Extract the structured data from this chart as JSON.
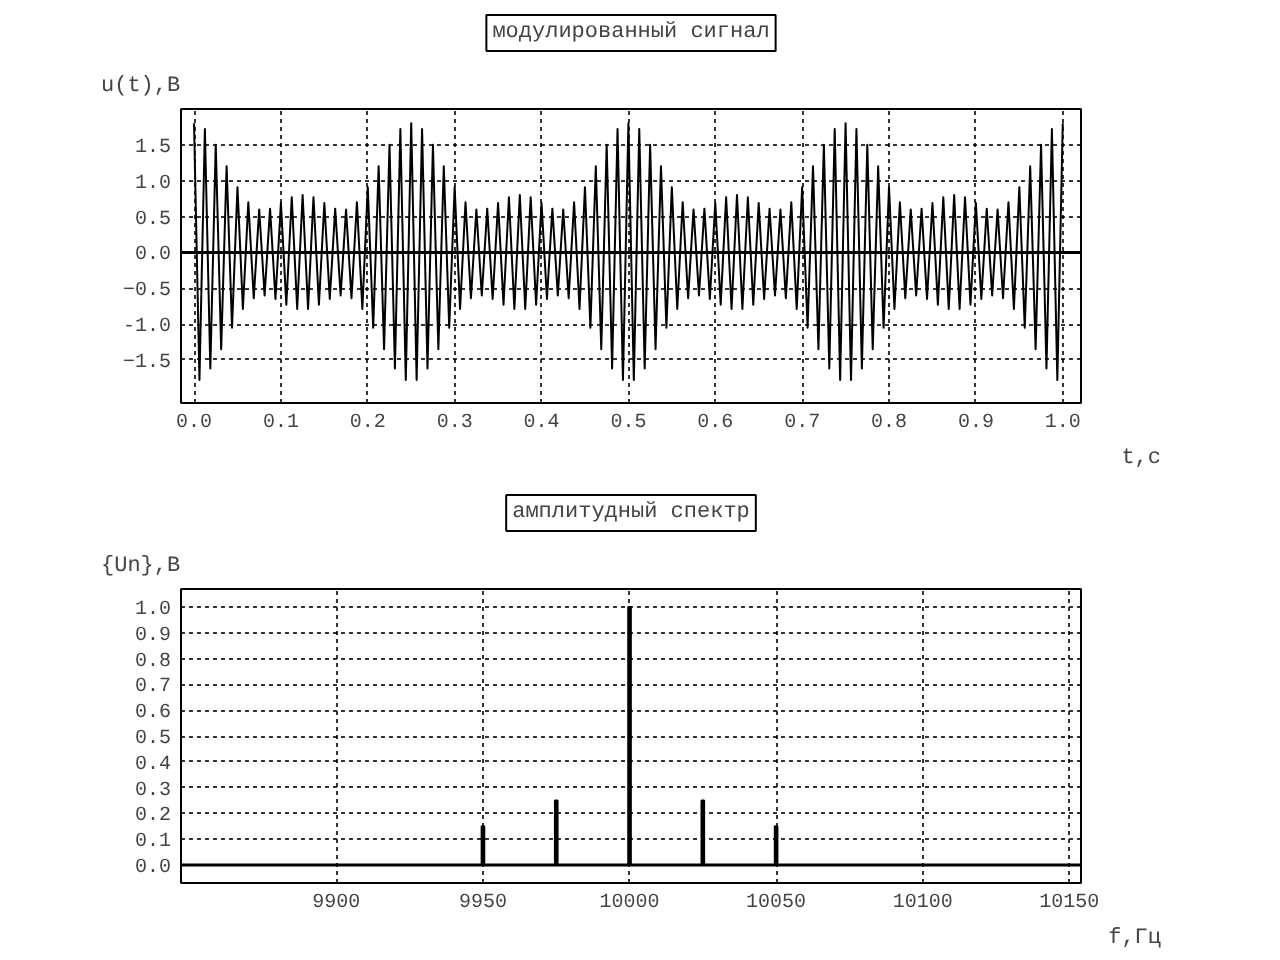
{
  "chart_data": [
    {
      "type": "line",
      "title": "модулированный сигнал",
      "xlabel": "t,с",
      "ylabel": "u(t),В",
      "x": [
        0,
        0.00625,
        0.0125,
        0.01875,
        0.025,
        0.03125,
        0.0375,
        0.04375,
        0.05,
        0.05625,
        0.0625,
        0.06875,
        0.075,
        0.08125,
        0.0875,
        0.09375,
        0.1,
        0.10625,
        0.1125,
        0.11875,
        0.125,
        0.13125,
        0.1375,
        0.14375,
        0.15,
        0.15625,
        0.1625,
        0.16875,
        0.175,
        0.18125,
        0.1875,
        0.19375,
        0.2,
        0.20625,
        0.2125,
        0.21875,
        0.225,
        0.23125,
        0.2375,
        0.24375,
        0.25,
        0.25625,
        0.2625,
        0.26875,
        0.275,
        0.28125,
        0.2875,
        0.29375,
        0.3,
        0.30625,
        0.3125,
        0.31875,
        0.325,
        0.33125,
        0.3375,
        0.34375,
        0.35,
        0.35625,
        0.3625,
        0.36875,
        0.375,
        0.38125,
        0.3875,
        0.39375,
        0.4,
        0.40625,
        0.4125,
        0.41875,
        0.425,
        0.43125,
        0.4375,
        0.44375,
        0.45,
        0.45625,
        0.4625,
        0.46875,
        0.475,
        0.48125,
        0.4875,
        0.49375,
        0.5,
        0.50625,
        0.5125,
        0.51875,
        0.525,
        0.53125,
        0.5375,
        0.54375,
        0.55,
        0.55625,
        0.5625,
        0.56875,
        0.575,
        0.58125,
        0.5875,
        0.59375,
        0.6,
        0.60625,
        0.6125,
        0.61875,
        0.625,
        0.63125,
        0.6375,
        0.64375,
        0.65,
        0.65625,
        0.6625,
        0.66875,
        0.675,
        0.68125,
        0.6875,
        0.69375,
        0.7,
        0.70625,
        0.7125,
        0.71875,
        0.725,
        0.73125,
        0.7375,
        0.74375,
        0.75,
        0.75625,
        0.7625,
        0.76875,
        0.775,
        0.78125,
        0.7875,
        0.79375,
        0.8,
        0.80625,
        0.8125,
        0.81875,
        0.825,
        0.83125,
        0.8375,
        0.84375,
        0.85,
        0.85625,
        0.8625,
        0.86875,
        0.875,
        0.88125,
        0.8875,
        0.89375,
        0.9,
        0.90625,
        0.9125,
        0.91875,
        0.925,
        0.93125,
        0.9375,
        0.94375,
        0.95,
        0.95625,
        0.9625,
        0.96875,
        0.975,
        0.98125,
        0.9875,
        0.99375,
        1.0
      ],
      "series": [
        {
          "color": "#000000",
          "values": [
            1.8,
            -1.78,
            1.72,
            -1.62,
            1.5,
            -1.35,
            1.2,
            -1.05,
            0.91,
            -0.79,
            0.7,
            -0.64,
            0.6,
            -0.6,
            0.61,
            -0.65,
            0.69,
            -0.73,
            0.77,
            -0.79,
            0.8,
            -0.79,
            0.77,
            -0.73,
            0.69,
            -0.65,
            0.61,
            -0.6,
            0.6,
            -0.64,
            0.7,
            -0.79,
            0.91,
            -1.05,
            1.2,
            -1.35,
            1.5,
            -1.62,
            1.72,
            -1.78,
            1.8,
            -1.78,
            1.72,
            -1.62,
            1.5,
            -1.35,
            1.2,
            -1.05,
            0.91,
            -0.79,
            0.7,
            -0.64,
            0.6,
            -0.6,
            0.61,
            -0.65,
            0.69,
            -0.73,
            0.77,
            -0.79,
            0.8,
            -0.79,
            0.77,
            -0.73,
            0.69,
            -0.65,
            0.61,
            -0.6,
            0.6,
            -0.64,
            0.7,
            -0.79,
            0.91,
            -1.05,
            1.2,
            -1.35,
            1.5,
            -1.62,
            1.72,
            -1.78,
            1.8,
            -1.78,
            1.72,
            -1.62,
            1.5,
            -1.35,
            1.2,
            -1.05,
            0.91,
            -0.79,
            0.7,
            -0.64,
            0.6,
            -0.6,
            0.61,
            -0.65,
            0.69,
            -0.73,
            0.77,
            -0.79,
            0.8,
            -0.79,
            0.77,
            -0.73,
            0.69,
            -0.65,
            0.61,
            -0.6,
            0.6,
            -0.64,
            0.7,
            -0.79,
            0.91,
            -1.05,
            1.2,
            -1.35,
            1.5,
            -1.62,
            1.72,
            -1.78,
            1.8,
            -1.78,
            1.72,
            -1.62,
            1.5,
            -1.35,
            1.2,
            -1.05,
            0.91,
            -0.79,
            0.7,
            -0.64,
            0.6,
            -0.6,
            0.61,
            -0.65,
            0.69,
            -0.73,
            0.77,
            -0.79,
            0.8,
            -0.79,
            0.77,
            -0.73,
            0.69,
            -0.65,
            0.61,
            -0.6,
            0.6,
            -0.64,
            0.7,
            -0.79,
            0.91,
            -1.05,
            1.2,
            -1.35,
            1.5,
            -1.62,
            1.72,
            -1.78,
            1.8
          ]
        }
      ],
      "xlim": [
        -0.015,
        1.021
      ],
      "ylim": [
        -2.1,
        2.0
      ],
      "xticks": [
        {
          "value": 0,
          "label": "0.0"
        },
        0.1,
        0.2,
        0.3,
        0.4,
        0.5,
        0.6,
        0.7,
        0.8,
        0.9,
        {
          "value": 1,
          "label": "1.0"
        }
      ],
      "yticks": [
        -1.5,
        {
          "value": -1,
          "label": "-1.0"
        },
        -0.5,
        {
          "value": 0,
          "label": "0.0"
        },
        0.5,
        {
          "value": 1,
          "label": "1.0"
        },
        1.5
      ],
      "ref_lines": [
        {
          "axis": "y",
          "value": 0,
          "color": "#000000"
        }
      ],
      "grid": true,
      "marker": "none",
      "line_style": "solid"
    },
    {
      "type": "bar",
      "title": "амплитудный спектр",
      "xlabel": "f,Гц",
      "ylabel": "{Un},В",
      "x": [
        9950,
        9975,
        10000,
        10025,
        10050
      ],
      "series": [
        {
          "color": "#000000",
          "values": [
            0.15,
            0.25,
            1.0,
            0.25,
            0.15
          ]
        }
      ],
      "xlim": [
        9847,
        10154
      ],
      "ylim": [
        -0.07,
        1.07
      ],
      "xticks": [
        9900,
        9950,
        10000,
        10050,
        10100,
        10150
      ],
      "yticks": [
        {
          "value": 0,
          "label": "0.0"
        },
        0.1,
        0.2,
        0.3,
        0.4,
        0.5,
        0.6,
        0.7,
        0.8,
        0.9,
        {
          "value": 1,
          "label": "1.0"
        }
      ],
      "grid": true
    }
  ]
}
